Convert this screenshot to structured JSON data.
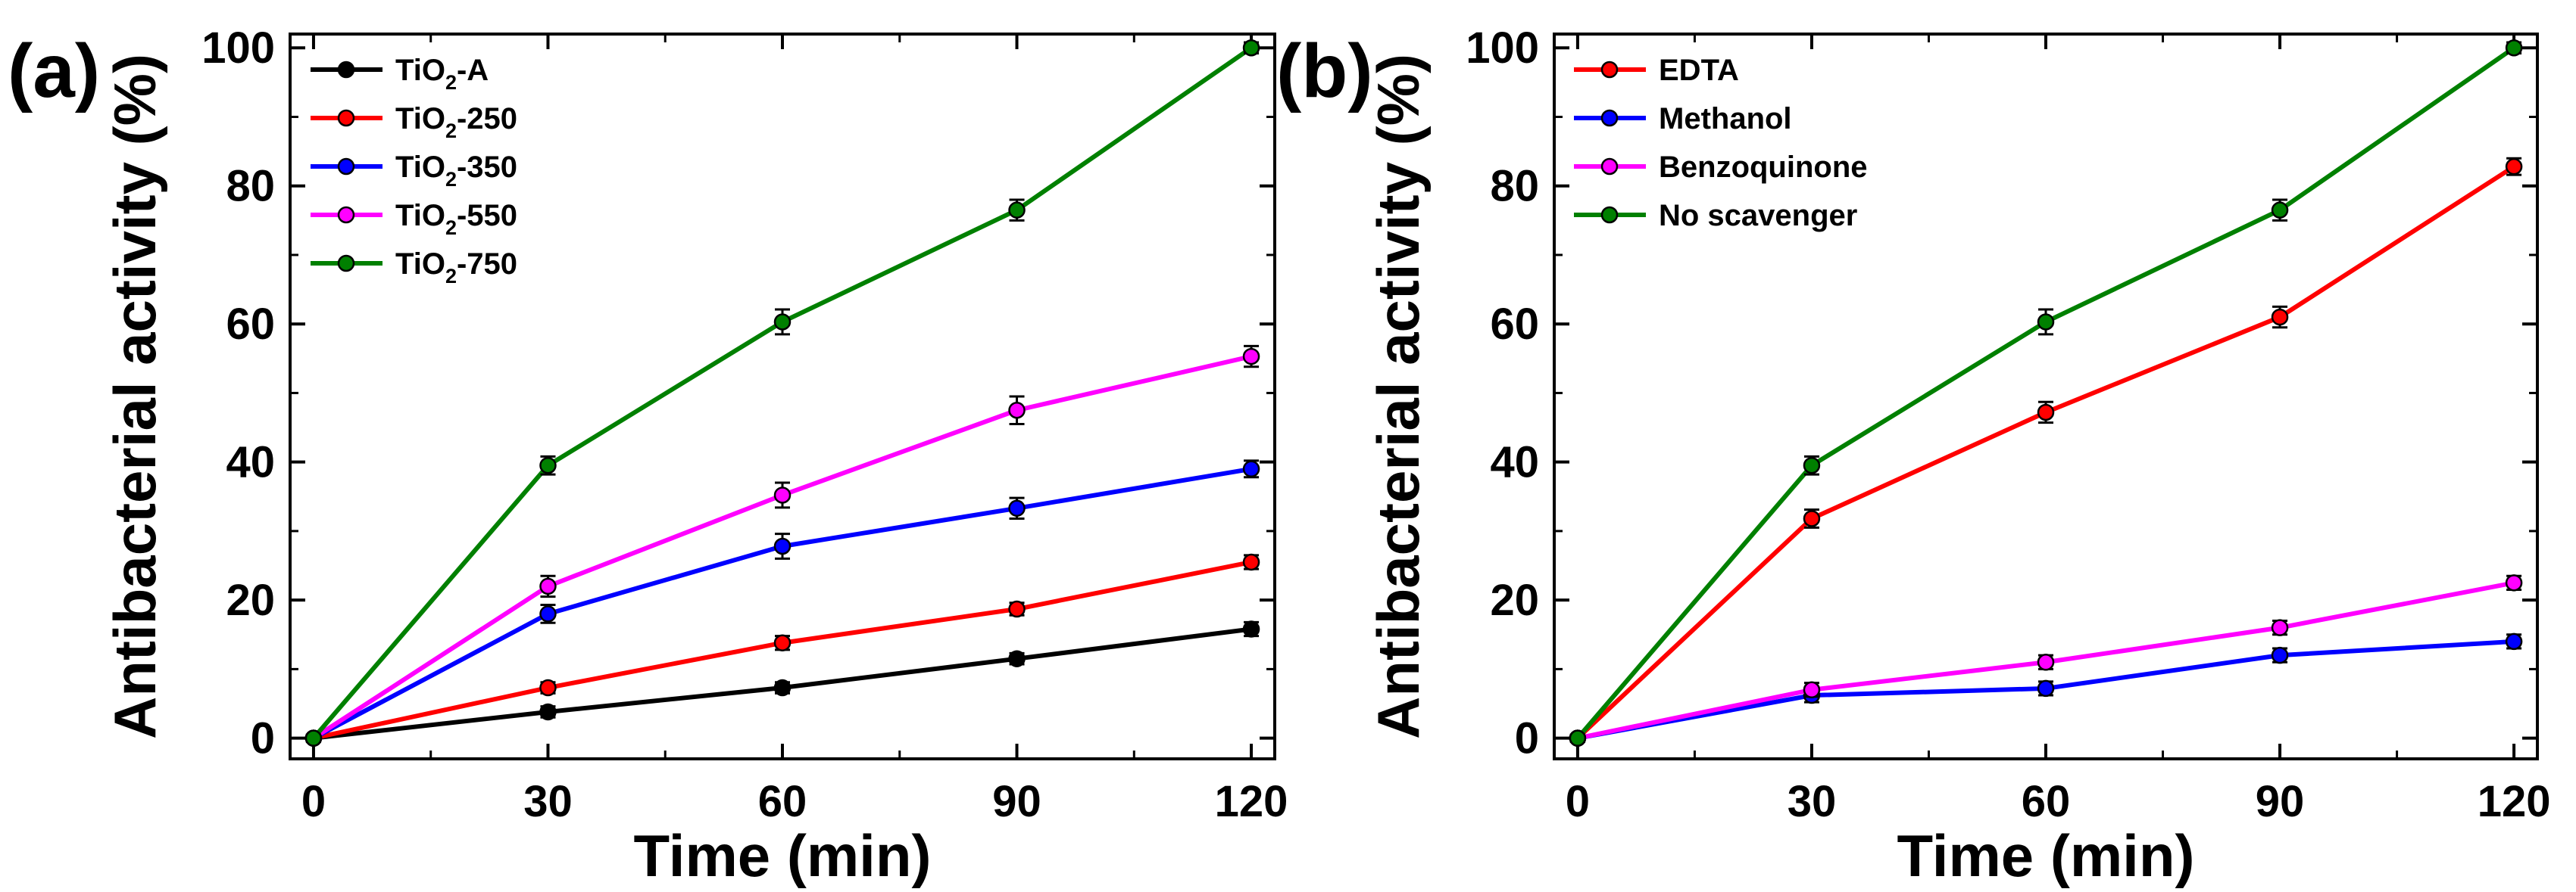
{
  "chart_data": [
    {
      "panel_label": "(a)",
      "type": "line",
      "xlabel": "Time (min)",
      "ylabel": "Antibacterial activity (%)",
      "x": [
        0,
        30,
        60,
        90,
        120
      ],
      "xlim": [
        -3,
        123
      ],
      "ylim": [
        -3,
        102
      ],
      "xticks": [
        0,
        30,
        60,
        90,
        120
      ],
      "yticks": [
        0,
        20,
        40,
        60,
        80,
        100
      ],
      "xtick_labels": [
        "0",
        "30",
        "60",
        "90",
        "120"
      ],
      "ytick_labels": [
        "0",
        "20",
        "40",
        "60",
        "80",
        "100"
      ],
      "legend_position": "top-left",
      "series": [
        {
          "name": "TiO2-A",
          "base": "TiO",
          "sub": "2",
          "suffix": "-A",
          "color": "#000000",
          "values": [
            0,
            3.8,
            7.3,
            11.5,
            15.8
          ],
          "errors": [
            0.5,
            0.8,
            0.8,
            0.8,
            1.0
          ]
        },
        {
          "name": "TiO2-250",
          "base": "TiO",
          "sub": "2",
          "suffix": "-250",
          "color": "#ff0000",
          "values": [
            0,
            7.3,
            13.8,
            18.7,
            25.5
          ],
          "errors": [
            0.5,
            0.8,
            1.0,
            0.9,
            1.0
          ]
        },
        {
          "name": "TiO2-350",
          "base": "TiO",
          "sub": "2",
          "suffix": "-350",
          "color": "#0000ff",
          "values": [
            0,
            18.0,
            27.8,
            33.3,
            39.0
          ],
          "errors": [
            0.5,
            1.3,
            1.8,
            1.5,
            1.2
          ]
        },
        {
          "name": "TiO2-550",
          "base": "TiO",
          "sub": "2",
          "suffix": "-550",
          "color": "#ff00ff",
          "values": [
            0,
            22.0,
            35.2,
            47.5,
            55.3
          ],
          "errors": [
            0.5,
            1.5,
            1.8,
            2.0,
            1.5
          ]
        },
        {
          "name": "TiO2-750",
          "base": "TiO",
          "sub": "2",
          "suffix": "-750",
          "color": "#008000",
          "values": [
            0,
            39.5,
            60.3,
            76.5,
            100.0
          ],
          "errors": [
            0.5,
            1.3,
            1.8,
            1.5,
            0.8
          ]
        }
      ]
    },
    {
      "panel_label": "(b)",
      "type": "line",
      "xlabel": "Time (min)",
      "ylabel": "Antibacterial activity (%)",
      "x": [
        0,
        30,
        60,
        90,
        120
      ],
      "xlim": [
        -3,
        123
      ],
      "ylim": [
        -3,
        102
      ],
      "xticks": [
        0,
        30,
        60,
        90,
        120
      ],
      "yticks": [
        0,
        20,
        40,
        60,
        80,
        100
      ],
      "xtick_labels": [
        "0",
        "30",
        "60",
        "90",
        "120"
      ],
      "ytick_labels": [
        "0",
        "20",
        "40",
        "60",
        "80",
        "100"
      ],
      "legend_position": "top-left",
      "series": [
        {
          "name": "EDTA",
          "base": "EDTA",
          "sub": "",
          "suffix": "",
          "color": "#ff0000",
          "values": [
            0,
            31.8,
            47.2,
            61.0,
            82.8
          ],
          "errors": [
            0.5,
            1.3,
            1.5,
            1.5,
            1.2
          ]
        },
        {
          "name": "Methanol",
          "base": "Methanol",
          "sub": "",
          "suffix": "",
          "color": "#0000ff",
          "values": [
            0,
            6.2,
            7.2,
            12.0,
            14.0
          ],
          "errors": [
            0.5,
            1.0,
            1.0,
            1.0,
            1.0
          ]
        },
        {
          "name": "Benzoquinone",
          "base": "Benzoquinone",
          "sub": "",
          "suffix": "",
          "color": "#ff00ff",
          "values": [
            0,
            7.0,
            11.0,
            16.0,
            22.5
          ],
          "errors": [
            0.5,
            1.0,
            1.0,
            1.0,
            1.0
          ]
        },
        {
          "name": "No scavenger",
          "base": "No scavenger",
          "sub": "",
          "suffix": "",
          "color": "#008000",
          "values": [
            0,
            39.5,
            60.3,
            76.5,
            100.0
          ],
          "errors": [
            0.5,
            1.3,
            1.8,
            1.5,
            0.8
          ]
        }
      ]
    }
  ]
}
